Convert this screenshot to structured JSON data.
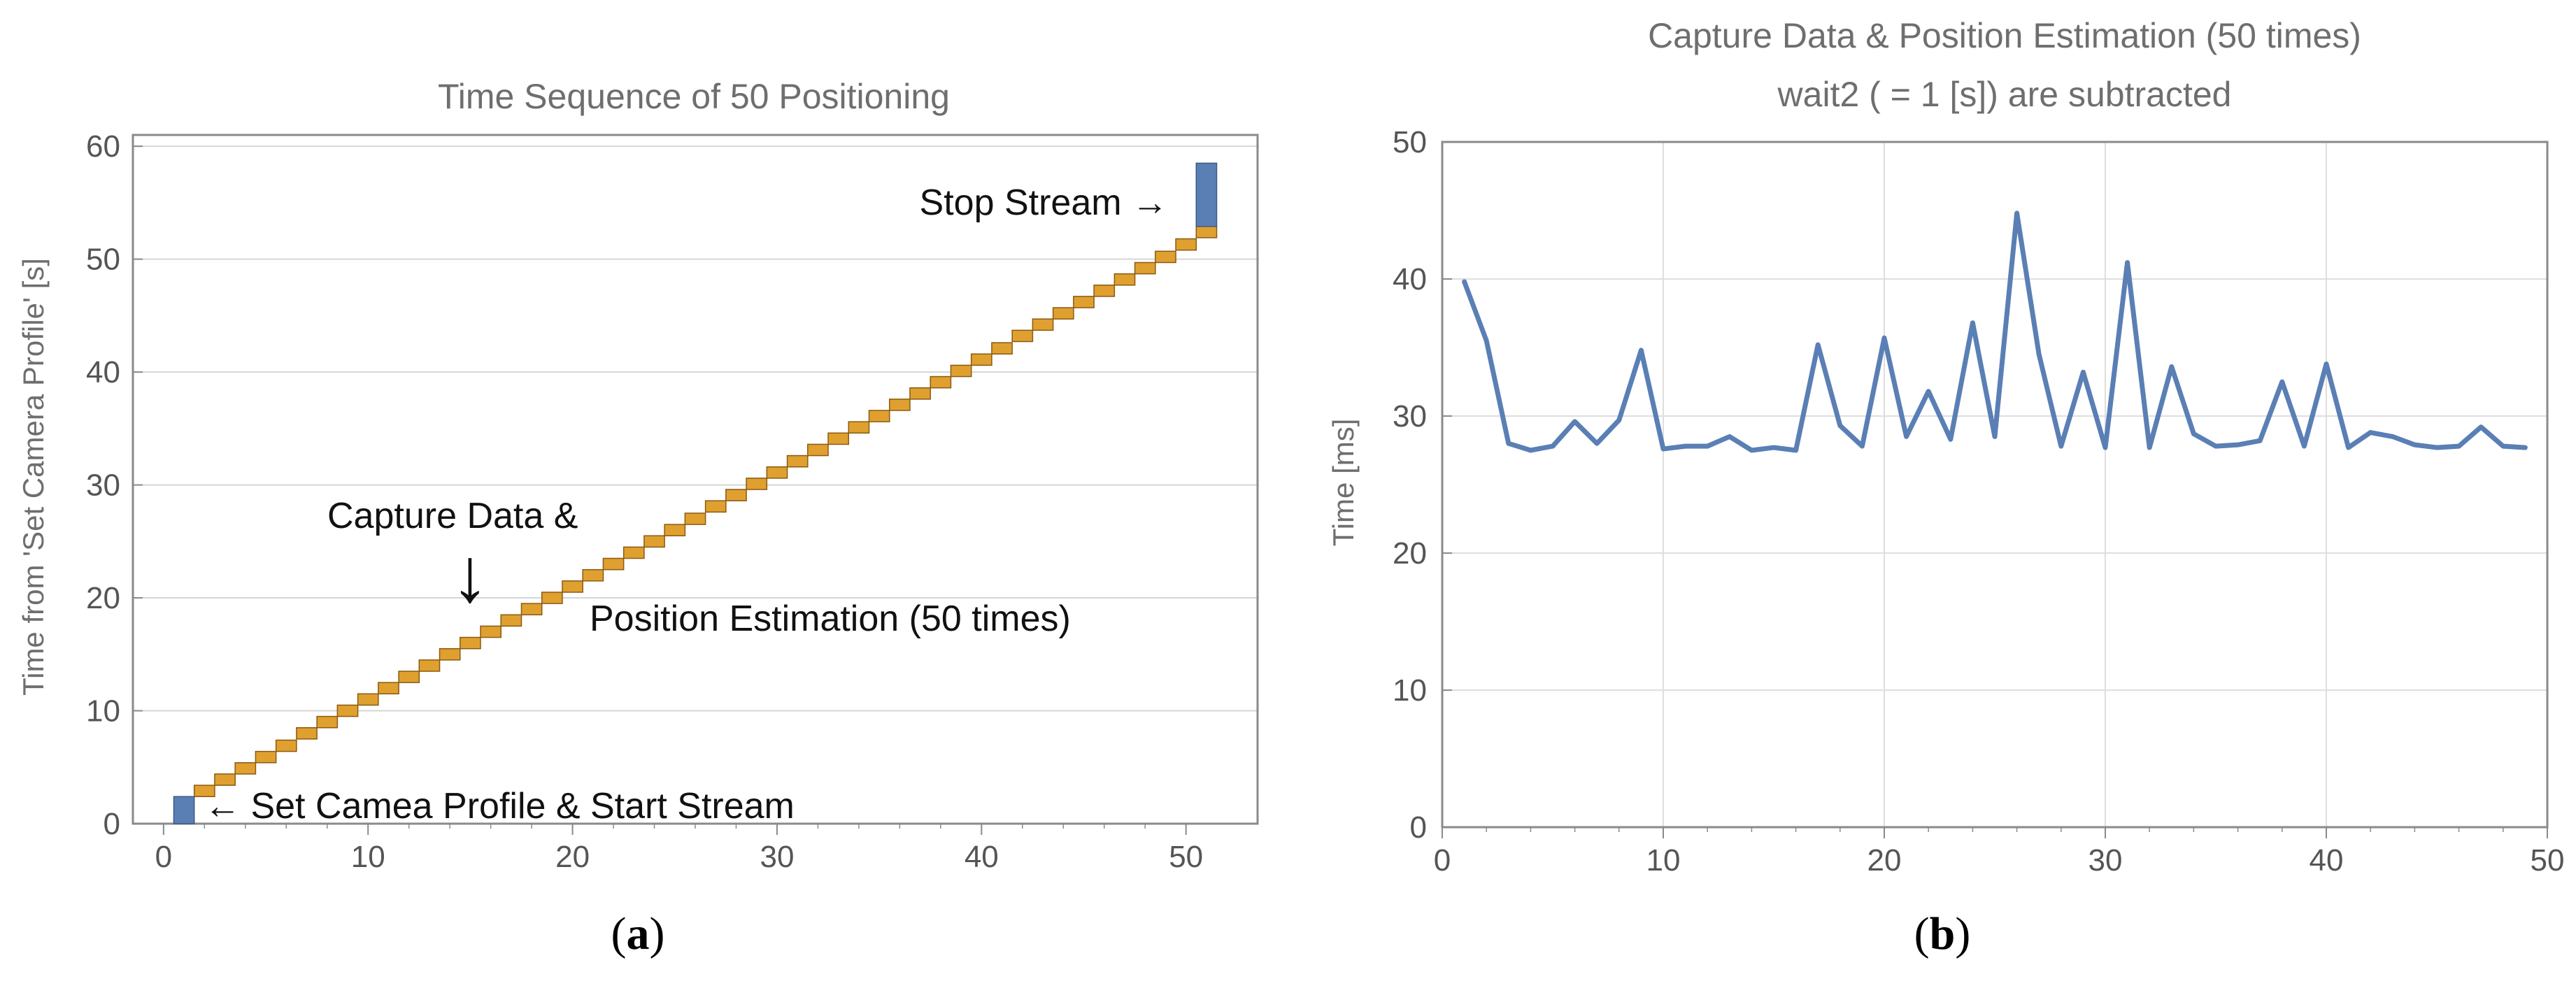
{
  "chart_data": [
    {
      "type": "bar",
      "panel_label": {
        "open": "(",
        "letter": "a",
        "close": ")"
      },
      "title": "Time Sequence of 50 Positioning",
      "xlabel": "",
      "ylabel": "Time from 'Set Camera Profile' [s]",
      "xlim": [
        -1.5,
        53.5
      ],
      "ylim": [
        0,
        61
      ],
      "xticks": [
        0,
        10,
        20,
        30,
        40,
        50
      ],
      "yticks": [
        0,
        10,
        20,
        30,
        40,
        50,
        60
      ],
      "grid": "horizontal",
      "legend": "none",
      "start_bar": {
        "label": "Set Camea Profile & Start Stream",
        "x": [
          0.5,
          1.5
        ],
        "y": [
          0,
          2.4
        ],
        "color": "#5a7fb5"
      },
      "stop_bar": {
        "label": "Stop Stream",
        "x": [
          50.5,
          51.5
        ],
        "y": [
          52.9,
          58.5
        ],
        "color": "#5a7fb5"
      },
      "steps": {
        "name": "Capture Data & Position Estimation (50 times)",
        "color": "#e0a030",
        "edge_color": "#8a5a10",
        "width": 1,
        "height": 1,
        "start": [
          [
            1.5,
            2.4
          ],
          [
            2.5,
            3.4
          ],
          [
            3.5,
            4.4
          ],
          [
            4.5,
            5.4
          ],
          [
            5.5,
            6.4
          ],
          [
            6.5,
            7.5
          ],
          [
            7.5,
            8.5
          ],
          [
            8.5,
            9.5
          ],
          [
            9.5,
            10.5
          ],
          [
            10.5,
            11.5
          ],
          [
            11.5,
            12.5
          ],
          [
            12.5,
            13.5
          ],
          [
            13.5,
            14.5
          ],
          [
            14.5,
            15.5
          ],
          [
            15.5,
            16.5
          ],
          [
            16.5,
            17.5
          ],
          [
            17.5,
            18.5
          ],
          [
            18.5,
            19.5
          ],
          [
            19.5,
            20.5
          ],
          [
            20.5,
            21.5
          ],
          [
            21.5,
            22.5
          ],
          [
            22.5,
            23.5
          ],
          [
            23.5,
            24.5
          ],
          [
            24.5,
            25.5
          ],
          [
            25.5,
            26.5
          ],
          [
            26.5,
            27.6
          ],
          [
            27.5,
            28.6
          ],
          [
            28.5,
            29.6
          ],
          [
            29.5,
            30.6
          ],
          [
            30.5,
            31.6
          ],
          [
            31.5,
            32.6
          ],
          [
            32.5,
            33.6
          ],
          [
            33.5,
            34.6
          ],
          [
            34.5,
            35.6
          ],
          [
            35.5,
            36.6
          ],
          [
            36.5,
            37.6
          ],
          [
            37.5,
            38.6
          ],
          [
            38.5,
            39.6
          ],
          [
            39.5,
            40.6
          ],
          [
            40.5,
            41.6
          ],
          [
            41.5,
            42.7
          ],
          [
            42.5,
            43.7
          ],
          [
            43.5,
            44.7
          ],
          [
            44.5,
            45.7
          ],
          [
            45.5,
            46.7
          ],
          [
            46.5,
            47.7
          ],
          [
            47.5,
            48.7
          ],
          [
            48.5,
            49.7
          ],
          [
            49.5,
            50.8
          ],
          [
            50.5,
            51.9
          ]
        ]
      },
      "annotations": {
        "capture_line1": "Capture Data &",
        "capture_line2": "Position Estimation (50 times)",
        "stop_text": "Stop Stream →",
        "start_text": "← Set Camea Profile & Start Stream",
        "capture_arrow": "↓"
      }
    },
    {
      "type": "line",
      "panel_label": {
        "open": "(",
        "letter": "b",
        "close": ")"
      },
      "title": "Capture Data & Position Estimation (50 times)",
      "subtitle": "wait2 ( = 1 [s]) are subtracted",
      "xlabel": "",
      "ylabel": "Time [ms]",
      "xlim": [
        0,
        50
      ],
      "ylim": [
        0,
        50
      ],
      "xticks": [
        0,
        10,
        20,
        30,
        40,
        50
      ],
      "yticks": [
        0,
        10,
        20,
        30,
        40,
        50
      ],
      "grid": "both",
      "legend": "none",
      "series": [
        {
          "name": "Time",
          "color": "#5a7fb5",
          "x": [
            1,
            2,
            3,
            4,
            5,
            6,
            7,
            8,
            9,
            10,
            11,
            12,
            13,
            14,
            15,
            16,
            17,
            18,
            19,
            20,
            21,
            22,
            23,
            24,
            25,
            26,
            27,
            28,
            29,
            30,
            31,
            32,
            33,
            34,
            35,
            36,
            37,
            38,
            39,
            40,
            41,
            42,
            43,
            44,
            45,
            46,
            47,
            48,
            49
          ],
          "values": [
            39.8,
            35.5,
            28.0,
            27.5,
            27.8,
            29.6,
            28.0,
            29.7,
            34.8,
            27.6,
            27.8,
            27.8,
            28.5,
            27.5,
            27.7,
            27.5,
            35.2,
            29.3,
            27.8,
            35.7,
            28.5,
            31.8,
            28.3,
            36.8,
            28.5,
            44.8,
            34.5,
            27.8,
            33.2,
            27.7,
            41.2,
            27.7,
            33.6,
            28.7,
            27.8,
            27.9,
            28.2,
            32.5,
            27.8,
            33.8,
            27.7,
            28.8,
            28.5,
            27.9,
            27.7,
            27.8,
            29.2,
            27.8,
            27.7
          ]
        }
      ]
    }
  ]
}
